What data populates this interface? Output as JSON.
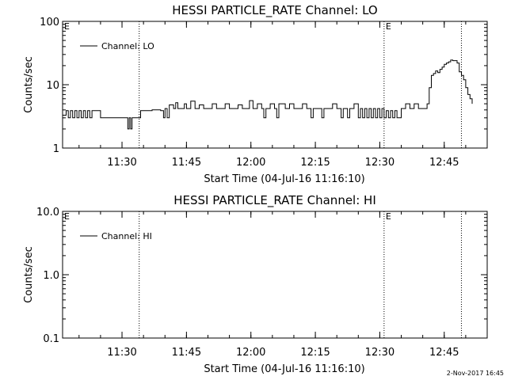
{
  "footer": {
    "stamp": "2-Nov-2017 16:45"
  },
  "x_tick_labels": [
    "11:30",
    "11:45",
    "12:00",
    "12:15",
    "12:30",
    "12:45"
  ],
  "chart_data": [
    {
      "type": "line",
      "title": "HESSI PARTICLE_RATE Channel: LO",
      "xlabel": "Start Time (04-Jul-16 11:16:10)",
      "ylabel": "Counts/sec",
      "y_scale": "log",
      "ylim": [
        1,
        100
      ],
      "y_tick_labels": [
        "1",
        "10",
        "100"
      ],
      "xlim": [
        "11:16:10",
        "12:55:00"
      ],
      "grid": false,
      "legend": {
        "label": "Channel: LO",
        "placement": "top-left"
      },
      "event_marker_label": "E",
      "event_marker_times": [
        "11:16:10",
        "12:31:00"
      ],
      "vertical_dotted_lines": [
        "11:34:00",
        "12:31:00",
        "12:49:00"
      ],
      "series": [
        {
          "name": "Channel: LO",
          "points": [
            [
              "11:16:10",
              3.3
            ],
            [
              "11:17:00",
              3.9
            ],
            [
              "11:17:30",
              3.0
            ],
            [
              "11:18:00",
              3.9
            ],
            [
              "11:18:30",
              3.0
            ],
            [
              "11:19:00",
              3.9
            ],
            [
              "11:19:30",
              3.0
            ],
            [
              "11:20:00",
              3.9
            ],
            [
              "11:20:30",
              3.0
            ],
            [
              "11:21:00",
              3.9
            ],
            [
              "11:21:30",
              3.0
            ],
            [
              "11:22:00",
              3.9
            ],
            [
              "11:22:30",
              3.0
            ],
            [
              "11:23:00",
              3.9
            ],
            [
              "11:24:30",
              3.9
            ],
            [
              "11:25:00",
              3.0
            ],
            [
              "11:28:00",
              3.0
            ],
            [
              "11:31:00",
              3.0
            ],
            [
              "11:31:20",
              2.0
            ],
            [
              "11:31:40",
              3.0
            ],
            [
              "11:32:00",
              2.0
            ],
            [
              "11:32:20",
              3.0
            ],
            [
              "11:34:00",
              3.0
            ],
            [
              "11:34:20",
              3.9
            ],
            [
              "11:35:00",
              3.9
            ],
            [
              "11:36:00",
              3.9
            ],
            [
              "11:37:00",
              4.0
            ],
            [
              "11:38:00",
              4.0
            ],
            [
              "11:39:00",
              3.9
            ],
            [
              "11:39:40",
              3.0
            ],
            [
              "11:40:00",
              4.2
            ],
            [
              "11:40:30",
              3.0
            ],
            [
              "11:41:00",
              4.8
            ],
            [
              "11:42:00",
              4.2
            ],
            [
              "11:42:30",
              5.2
            ],
            [
              "11:43:00",
              4.2
            ],
            [
              "11:44:00",
              4.2
            ],
            [
              "11:44:30",
              5.0
            ],
            [
              "11:45:00",
              4.2
            ],
            [
              "11:46:00",
              5.5
            ],
            [
              "11:47:00",
              4.2
            ],
            [
              "11:48:00",
              4.8
            ],
            [
              "11:49:00",
              4.2
            ],
            [
              "11:50:00",
              4.2
            ],
            [
              "11:51:00",
              5.0
            ],
            [
              "11:52:00",
              4.2
            ],
            [
              "11:53:00",
              4.2
            ],
            [
              "11:54:00",
              5.0
            ],
            [
              "11:55:00",
              4.2
            ],
            [
              "11:56:00",
              4.2
            ],
            [
              "11:57:00",
              4.8
            ],
            [
              "11:58:00",
              4.2
            ],
            [
              "11:59:00",
              4.2
            ],
            [
              "11:59:40",
              5.6
            ],
            [
              "12:00:30",
              4.2
            ],
            [
              "12:01:30",
              5.0
            ],
            [
              "12:02:30",
              4.2
            ],
            [
              "12:03:00",
              3.0
            ],
            [
              "12:03:30",
              4.2
            ],
            [
              "12:04:30",
              5.0
            ],
            [
              "12:05:30",
              4.2
            ],
            [
              "12:06:00",
              3.0
            ],
            [
              "12:06:30",
              5.0
            ],
            [
              "12:08:00",
              4.2
            ],
            [
              "12:09:00",
              5.0
            ],
            [
              "12:10:00",
              4.2
            ],
            [
              "12:11:00",
              4.2
            ],
            [
              "12:12:00",
              5.0
            ],
            [
              "12:13:00",
              4.2
            ],
            [
              "12:14:00",
              3.0
            ],
            [
              "12:14:30",
              4.2
            ],
            [
              "12:15:30",
              4.2
            ],
            [
              "12:16:30",
              3.0
            ],
            [
              "12:17:00",
              4.2
            ],
            [
              "12:18:00",
              4.2
            ],
            [
              "12:19:00",
              5.0
            ],
            [
              "12:20:00",
              4.2
            ],
            [
              "12:21:00",
              3.0
            ],
            [
              "12:21:30",
              4.2
            ],
            [
              "12:22:30",
              3.0
            ],
            [
              "12:23:00",
              4.2
            ],
            [
              "12:24:00",
              5.0
            ],
            [
              "12:25:00",
              3.0
            ],
            [
              "12:25:30",
              4.2
            ],
            [
              "12:26:00",
              3.0
            ],
            [
              "12:26:30",
              4.2
            ],
            [
              "12:27:00",
              3.0
            ],
            [
              "12:27:30",
              4.2
            ],
            [
              "12:28:00",
              3.0
            ],
            [
              "12:28:30",
              4.2
            ],
            [
              "12:29:00",
              3.0
            ],
            [
              "12:29:30",
              4.2
            ],
            [
              "12:30:00",
              3.0
            ],
            [
              "12:30:30",
              4.2
            ],
            [
              "12:31:00",
              3.0
            ],
            [
              "12:31:30",
              3.9
            ],
            [
              "12:32:00",
              3.0
            ],
            [
              "12:32:30",
              3.9
            ],
            [
              "12:33:00",
              3.0
            ],
            [
              "12:33:30",
              3.9
            ],
            [
              "12:34:00",
              3.0
            ],
            [
              "12:35:00",
              4.2
            ],
            [
              "12:36:00",
              5.0
            ],
            [
              "12:37:00",
              4.2
            ],
            [
              "12:38:00",
              5.0
            ],
            [
              "12:39:00",
              4.2
            ],
            [
              "12:40:00",
              4.2
            ],
            [
              "12:41:00",
              5.0
            ],
            [
              "12:41:30",
              9.0
            ],
            [
              "12:42:00",
              14.0
            ],
            [
              "12:42:30",
              15.0
            ],
            [
              "12:43:00",
              16.5
            ],
            [
              "12:43:30",
              15.5
            ],
            [
              "12:44:00",
              17.5
            ],
            [
              "12:44:30",
              19.0
            ],
            [
              "12:45:00",
              21.0
            ],
            [
              "12:45:30",
              22.0
            ],
            [
              "12:46:00",
              23.0
            ],
            [
              "12:46:30",
              24.5
            ],
            [
              "12:47:00",
              24.0
            ],
            [
              "12:47:30",
              24.0
            ],
            [
              "12:48:00",
              22.0
            ],
            [
              "12:48:30",
              16.0
            ],
            [
              "12:49:00",
              14.0
            ],
            [
              "12:49:30",
              12.0
            ],
            [
              "12:50:00",
              9.0
            ],
            [
              "12:50:30",
              7.0
            ],
            [
              "12:51:00",
              6.0
            ],
            [
              "12:51:30",
              5.0
            ]
          ]
        }
      ]
    },
    {
      "type": "line",
      "title": "HESSI PARTICLE_RATE Channel: HI",
      "xlabel": "Start Time (04-Jul-16 11:16:10)",
      "ylabel": "Counts/sec",
      "y_scale": "log",
      "ylim": [
        0.1,
        10
      ],
      "y_tick_labels": [
        "0.1",
        "1.0",
        "10.0"
      ],
      "xlim": [
        "11:16:10",
        "12:55:00"
      ],
      "grid": false,
      "legend": {
        "label": "Channel: HI",
        "placement": "top-left"
      },
      "event_marker_label": "E",
      "event_marker_times": [
        "11:16:10",
        "12:31:00"
      ],
      "vertical_dotted_lines": [
        "11:34:00",
        "12:31:00",
        "12:49:00"
      ],
      "series": [
        {
          "name": "Channel: HI",
          "points": []
        }
      ]
    }
  ]
}
